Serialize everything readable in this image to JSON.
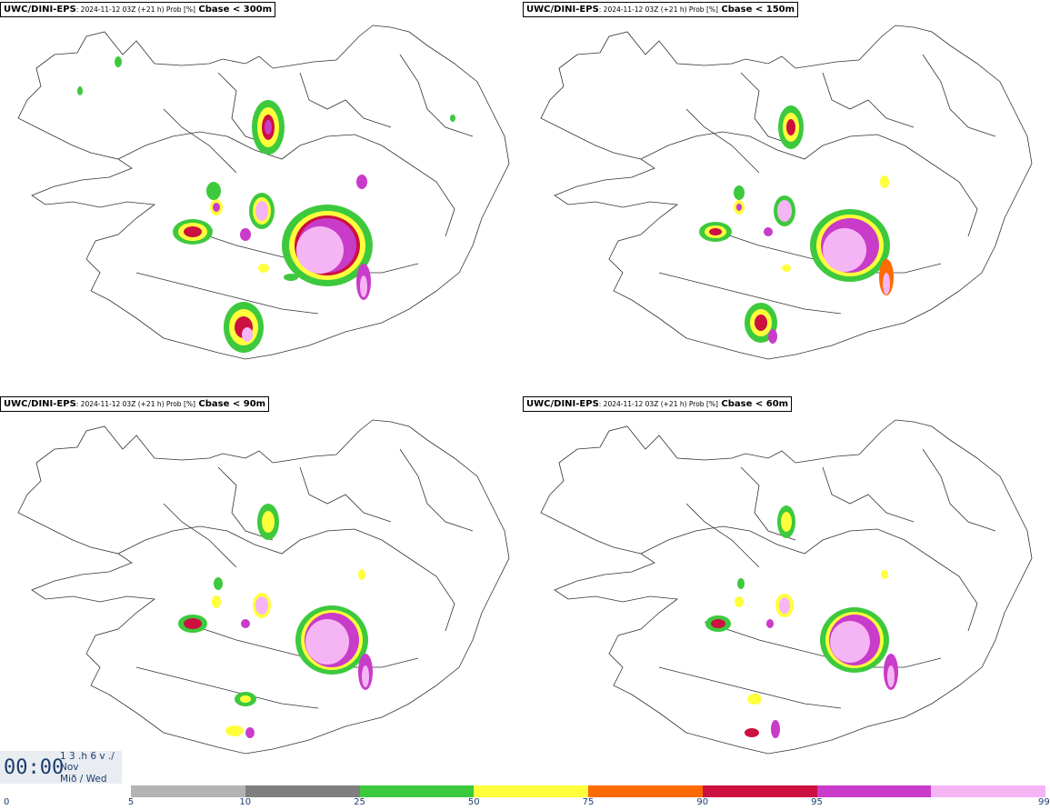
{
  "panels": [
    {
      "source": "UWC/DINI-EPS",
      "meta": ": 2024-11-12 03Z (+21 h) Prob [%]",
      "variable": " Cbase < 300m"
    },
    {
      "source": "UWC/DINI-EPS",
      "meta": ": 2024-11-12 03Z (+21 h) Prob [%]",
      "variable": " Cbase < 150m"
    },
    {
      "source": "UWC/DINI-EPS",
      "meta": ": 2024-11-12 03Z (+21 h) Prob [%]",
      "variable": " Cbase < 90m"
    },
    {
      "source": "UWC/DINI-EPS",
      "meta": ": 2024-11-12 03Z (+21 h) Prob [%]",
      "variable": " Cbase < 60m"
    }
  ],
  "clock": {
    "time": "00:00",
    "line1": "1 3 .h 6 v ./",
    "line2": "Nov",
    "line3": "Mið / Wed"
  },
  "legend": {
    "ticks": [
      "0",
      "5",
      "10",
      "25",
      "50",
      "75",
      "90",
      "95",
      "99"
    ],
    "colors": [
      "#b4b4b4",
      "#7f7f7f",
      "#3dc93d",
      "#ffff3c",
      "#ff6a00",
      "#cc1040",
      "#c93bc9",
      "#f5b5f5"
    ]
  }
}
